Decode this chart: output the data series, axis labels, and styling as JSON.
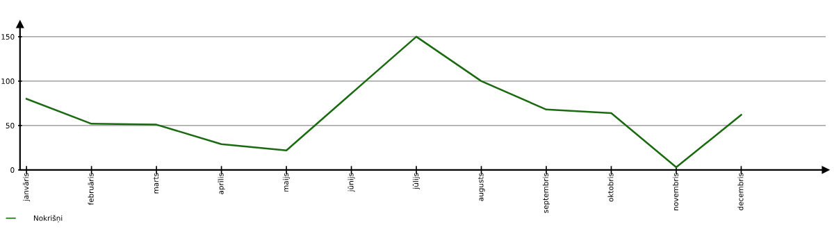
{
  "chart_data": {
    "type": "line",
    "categories": [
      "janvāris",
      "februāris",
      "marts",
      "aprīlis",
      "maijs",
      "jūnijs",
      "jūlijs",
      "augusts",
      "septembris",
      "oktobris",
      "novembris",
      "decembris"
    ],
    "series": [
      {
        "name": "Nokrišņi",
        "color": "#1a6b0f",
        "values": [
          80,
          52,
          51,
          29,
          22,
          86,
          150,
          100,
          68,
          64,
          3,
          62
        ]
      }
    ],
    "ylim": [
      0,
      164
    ],
    "yticks": [
      0,
      50,
      100,
      150
    ],
    "grid": "y",
    "legend": "bottom left",
    "marker": "none",
    "line_style": "solid"
  }
}
